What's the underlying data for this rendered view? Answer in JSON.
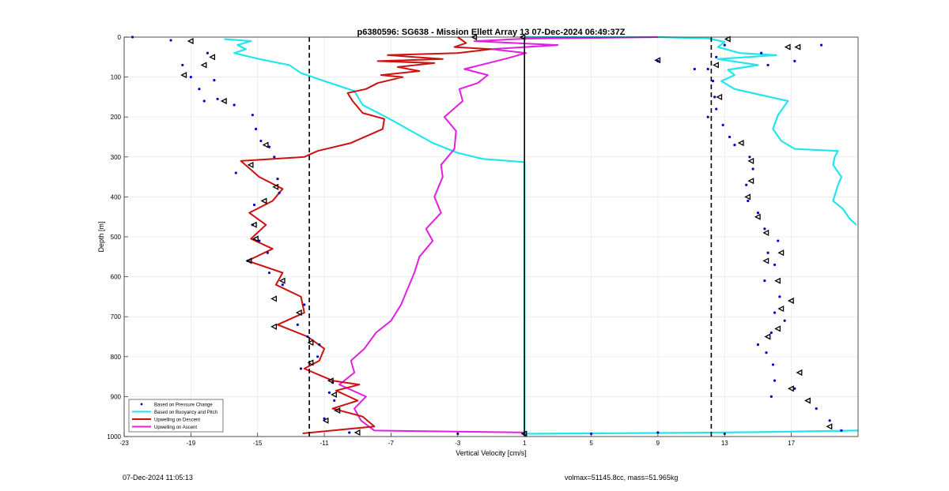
{
  "footer": {
    "date": "07-Dec-2024 11:05:13",
    "info": "volmax=51145.8cc, mass=51.965kg"
  },
  "colors": {
    "pressure": "#0000cc",
    "buoyancy": "#22e6ee",
    "descent": "#cc1111",
    "ascent": "#e21ee2",
    "grid": "#e6e6e6"
  },
  "chart_data": {
    "type": "line",
    "title": "p6380596: SG638 - Mission Ellett Array 13 07-Dec-2024 06:49:37Z",
    "xlabel": "Vertical Velocity [cm/s]",
    "ylabel": "Depth [m]",
    "xlim": [
      -23,
      21
    ],
    "ylim": [
      0,
      1000
    ],
    "y_reversed": true,
    "grid": true,
    "legend_position": "bottom-left",
    "x_ticks": [
      "-23",
      "-19",
      "-15",
      "-11",
      "-7",
      "-3",
      "1",
      "5",
      "9",
      "13",
      "17"
    ],
    "x_tick_values": [
      -23,
      -19,
      -15,
      -11,
      -7,
      -3,
      1,
      5,
      9,
      13,
      17
    ],
    "y_ticks": [
      "0",
      "100",
      "200",
      "300",
      "400",
      "500",
      "600",
      "700",
      "800",
      "900",
      "1000"
    ],
    "y_tick_values": [
      0,
      100,
      200,
      300,
      400,
      500,
      600,
      700,
      800,
      900,
      1000
    ],
    "vertical_lines": [
      {
        "x": -11.9,
        "style": "dashed"
      },
      {
        "x": 1.0,
        "style": "solid"
      },
      {
        "x": 12.2,
        "style": "dashed"
      }
    ],
    "series": [
      {
        "name": "Based on Pressure Change",
        "style": "dots",
        "points": [
          [
            -22.5,
            0
          ],
          [
            -20.2,
            8
          ],
          [
            -18.0,
            40
          ],
          [
            -19.5,
            70
          ],
          [
            -19.0,
            100
          ],
          [
            -17.6,
            108
          ],
          [
            -18.5,
            130
          ],
          [
            -18.2,
            160
          ],
          [
            -17.4,
            155
          ],
          [
            -16.4,
            170
          ],
          [
            -15.3,
            195
          ],
          [
            -15.1,
            230
          ],
          [
            -14.8,
            260
          ],
          [
            -14.3,
            275
          ],
          [
            -14.0,
            300
          ],
          [
            -16.3,
            340
          ],
          [
            -13.8,
            355
          ],
          [
            -13.7,
            390
          ],
          [
            -15.2,
            420
          ],
          [
            -15.3,
            470
          ],
          [
            -14.9,
            510
          ],
          [
            -14.4,
            540
          ],
          [
            -15.6,
            560
          ],
          [
            -14.3,
            590
          ],
          [
            -13.5,
            620
          ],
          [
            -12.2,
            670
          ],
          [
            -12.6,
            720
          ],
          [
            -12.0,
            750
          ],
          [
            -11.3,
            770
          ],
          [
            -11.4,
            800
          ],
          [
            -12.4,
            830
          ],
          [
            -10.5,
            865
          ],
          [
            -10.7,
            890
          ],
          [
            -10.4,
            910
          ],
          [
            -11.0,
            955
          ],
          [
            -9.5,
            990
          ],
          [
            -3.0,
            993
          ],
          [
            1.0,
            995
          ],
          [
            5.0,
            993
          ],
          [
            9.0,
            990
          ],
          [
            13.0,
            993
          ],
          [
            13.0,
            20
          ],
          [
            12.5,
            50
          ],
          [
            12.0,
            80
          ],
          [
            12.3,
            110
          ],
          [
            12.4,
            150
          ],
          [
            12.5,
            180
          ],
          [
            12.0,
            200
          ],
          [
            12.9,
            220
          ],
          [
            13.3,
            250
          ],
          [
            13.6,
            270
          ],
          [
            14.5,
            300
          ],
          [
            14.7,
            330
          ],
          [
            14.3,
            370
          ],
          [
            14.4,
            410
          ],
          [
            15.0,
            440
          ],
          [
            15.4,
            480
          ],
          [
            16.2,
            510
          ],
          [
            15.6,
            540
          ],
          [
            16.0,
            570
          ],
          [
            15.4,
            610
          ],
          [
            16.3,
            650
          ],
          [
            16.0,
            690
          ],
          [
            16.6,
            710
          ],
          [
            15.8,
            740
          ],
          [
            15.0,
            770
          ],
          [
            15.5,
            790
          ],
          [
            15.9,
            820
          ],
          [
            16.0,
            860
          ],
          [
            17.2,
            880
          ],
          [
            15.8,
            900
          ],
          [
            18.5,
            930
          ],
          [
            19.3,
            960
          ],
          [
            20.0,
            985
          ],
          [
            18.8,
            20
          ],
          [
            15.2,
            40
          ],
          [
            17.2,
            60
          ],
          [
            9.0,
            60
          ],
          [
            15.6,
            70
          ],
          [
            11.2,
            80
          ]
        ],
        "markers": [
          [
            -19.0,
            10
          ],
          [
            -17.7,
            50
          ],
          [
            -18.2,
            70
          ],
          [
            -19.4,
            95
          ],
          [
            -17.0,
            160
          ],
          [
            -14.5,
            270
          ],
          [
            -15.4,
            320
          ],
          [
            -13.9,
            375
          ],
          [
            -14.6,
            410
          ],
          [
            -15.2,
            470
          ],
          [
            -15.1,
            505
          ],
          [
            -15.5,
            560
          ],
          [
            -13.5,
            610
          ],
          [
            -14.0,
            655
          ],
          [
            -12.5,
            690
          ],
          [
            -14.0,
            725
          ],
          [
            -11.8,
            765
          ],
          [
            -11.8,
            815
          ],
          [
            -10.6,
            860
          ],
          [
            -10.4,
            895
          ],
          [
            -10.2,
            935
          ],
          [
            -10.9,
            960
          ],
          [
            -9.0,
            990
          ],
          [
            -2.0,
            0
          ],
          [
            0.9,
            0
          ],
          [
            1.0,
            993
          ],
          [
            9.0,
            58
          ],
          [
            13.2,
            5
          ],
          [
            12.5,
            70
          ],
          [
            16.8,
            25
          ],
          [
            12.7,
            150
          ],
          [
            14.0,
            265
          ],
          [
            14.6,
            310
          ],
          [
            14.6,
            360
          ],
          [
            14.4,
            400
          ],
          [
            15.0,
            450
          ],
          [
            15.5,
            490
          ],
          [
            16.4,
            540
          ],
          [
            15.5,
            560
          ],
          [
            16.2,
            610
          ],
          [
            16.4,
            680
          ],
          [
            17.0,
            660
          ],
          [
            16.2,
            730
          ],
          [
            15.6,
            750
          ],
          [
            17.5,
            840
          ],
          [
            17.0,
            880
          ],
          [
            18.0,
            910
          ],
          [
            19.3,
            975
          ],
          [
            17.4,
            25
          ]
        ]
      },
      {
        "name": "Based on Buoyancy and Pitch",
        "style": "line",
        "points": [
          [
            -17.0,
            5
          ],
          [
            -15.4,
            10
          ],
          [
            -16.2,
            20
          ],
          [
            -15.7,
            30
          ],
          [
            -16.4,
            40
          ],
          [
            -14.9,
            55
          ],
          [
            -13.1,
            70
          ],
          [
            -12.4,
            90
          ],
          [
            -11.0,
            110
          ],
          [
            -9.2,
            135
          ],
          [
            -8.7,
            170
          ],
          [
            -7.3,
            200
          ],
          [
            -6.0,
            230
          ],
          [
            -4.5,
            265
          ],
          [
            -3.0,
            290
          ],
          [
            -1.5,
            305
          ],
          [
            1.0,
            313
          ],
          [
            1.0,
            980
          ],
          [
            1.0,
            993
          ],
          [
            5.0,
            992
          ],
          [
            10.0,
            991
          ],
          [
            15.0,
            989
          ],
          [
            21.0,
            985
          ]
        ],
        "points_right": [
          [
            1.0,
            0
          ],
          [
            9.0,
            0
          ],
          [
            12.0,
            3
          ],
          [
            13.0,
            12
          ],
          [
            12.6,
            25
          ],
          [
            13.9,
            40
          ],
          [
            16.1,
            45
          ],
          [
            12.6,
            55
          ],
          [
            15.0,
            70
          ],
          [
            13.2,
            82
          ],
          [
            13.6,
            95
          ],
          [
            12.8,
            110
          ],
          [
            13.6,
            130
          ],
          [
            16.8,
            160
          ],
          [
            16.2,
            195
          ],
          [
            15.9,
            230
          ],
          [
            16.4,
            260
          ],
          [
            17.2,
            280
          ],
          [
            19.8,
            285
          ],
          [
            19.6,
            300
          ],
          [
            19.5,
            320
          ],
          [
            20.0,
            350
          ],
          [
            19.8,
            370
          ],
          [
            19.5,
            410
          ],
          [
            20.1,
            430
          ],
          [
            20.5,
            455
          ],
          [
            20.9,
            470
          ]
        ]
      },
      {
        "name": "Upwelling on Descent",
        "style": "line",
        "points": [
          [
            -3.0,
            0
          ],
          [
            -2.5,
            15
          ],
          [
            -3.2,
            25
          ],
          [
            -1.0,
            30
          ],
          [
            -3.0,
            40
          ],
          [
            -7.2,
            45
          ],
          [
            -3.9,
            55
          ],
          [
            -7.8,
            60
          ],
          [
            -4.4,
            65
          ],
          [
            -6.6,
            75
          ],
          [
            -5.3,
            85
          ],
          [
            -7.6,
            95
          ],
          [
            -6.3,
            100
          ],
          [
            -7.8,
            115
          ],
          [
            -8.5,
            130
          ],
          [
            -9.6,
            140
          ],
          [
            -9.3,
            160
          ],
          [
            -8.7,
            190
          ],
          [
            -7.4,
            205
          ],
          [
            -7.5,
            230
          ],
          [
            -9.4,
            265
          ],
          [
            -11.4,
            285
          ],
          [
            -12.2,
            300
          ],
          [
            -16.0,
            310
          ],
          [
            -14.9,
            350
          ],
          [
            -13.5,
            380
          ],
          [
            -14.1,
            410
          ],
          [
            -15.5,
            440
          ],
          [
            -14.5,
            470
          ],
          [
            -15.4,
            505
          ],
          [
            -14.1,
            530
          ],
          [
            -15.6,
            560
          ],
          [
            -13.5,
            590
          ],
          [
            -13.9,
            620
          ],
          [
            -12.4,
            650
          ],
          [
            -12.2,
            690
          ],
          [
            -13.8,
            720
          ],
          [
            -12.0,
            750
          ],
          [
            -11.0,
            780
          ],
          [
            -11.3,
            810
          ],
          [
            -12.2,
            830
          ],
          [
            -10.5,
            860
          ],
          [
            -8.9,
            870
          ],
          [
            -10.3,
            885
          ],
          [
            -9.0,
            910
          ],
          [
            -10.5,
            930
          ],
          [
            -8.7,
            950
          ],
          [
            -8.0,
            975
          ],
          [
            -12.3,
            992
          ]
        ]
      },
      {
        "name": "Upwelling on Ascent",
        "style": "line",
        "points": [
          [
            9.0,
            0
          ],
          [
            1.0,
            4
          ],
          [
            -2.0,
            10
          ],
          [
            3.0,
            20
          ],
          [
            -1.0,
            30
          ],
          [
            1.1,
            40
          ],
          [
            -0.2,
            55
          ],
          [
            -2.6,
            80
          ],
          [
            -1.2,
            95
          ],
          [
            -1.8,
            115
          ],
          [
            -2.9,
            130
          ],
          [
            -2.7,
            160
          ],
          [
            -3.8,
            200
          ],
          [
            -3.1,
            235
          ],
          [
            -3.2,
            280
          ],
          [
            -4.0,
            320
          ],
          [
            -3.9,
            350
          ],
          [
            -4.4,
            400
          ],
          [
            -4.0,
            440
          ],
          [
            -4.9,
            480
          ],
          [
            -4.5,
            510
          ],
          [
            -5.3,
            550
          ],
          [
            -5.6,
            590
          ],
          [
            -6.0,
            630
          ],
          [
            -6.4,
            670
          ],
          [
            -7.0,
            710
          ],
          [
            -7.9,
            740
          ],
          [
            -8.6,
            780
          ],
          [
            -9.4,
            810
          ],
          [
            -9.2,
            840
          ],
          [
            -10.1,
            870
          ],
          [
            -8.5,
            900
          ],
          [
            -9.2,
            930
          ],
          [
            -8.8,
            960
          ],
          [
            -8.0,
            985
          ],
          [
            1.0,
            990
          ]
        ]
      }
    ]
  }
}
